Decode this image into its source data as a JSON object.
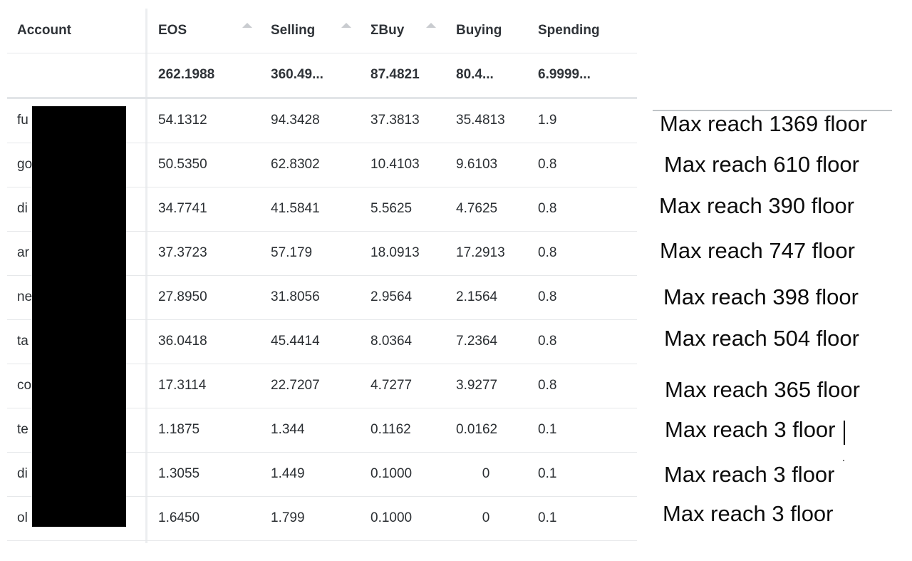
{
  "table": {
    "headers": [
      "Account",
      "EOS",
      "Selling",
      "ΣBuy",
      "Buying",
      "Spending"
    ],
    "totals": [
      "",
      "262.1988",
      "360.49...",
      "87.4821",
      "80.4...",
      "6.9999..."
    ],
    "rows": [
      {
        "account": "fu",
        "eos": "54.1312",
        "selling": "94.3428",
        "sbuy": "37.3813",
        "buying": "35.4813",
        "spending": "1.9"
      },
      {
        "account": "go",
        "eos": "50.5350",
        "selling": "62.8302",
        "sbuy": "10.4103",
        "buying": "9.6103",
        "spending": "0.8"
      },
      {
        "account": "di",
        "eos": "34.7741",
        "selling": "41.5841",
        "sbuy": "5.5625",
        "buying": "4.7625",
        "spending": "0.8"
      },
      {
        "account": "ar",
        "eos": "37.3723",
        "selling": "57.179",
        "sbuy": "18.0913",
        "buying": "17.2913",
        "spending": "0.8"
      },
      {
        "account": "ne",
        "eos": "27.8950",
        "selling": "31.8056",
        "sbuy": "2.9564",
        "buying": "2.1564",
        "spending": "0.8"
      },
      {
        "account": "ta",
        "eos": "36.0418",
        "selling": "45.4414",
        "sbuy": "8.0364",
        "buying": "7.2364",
        "spending": "0.8"
      },
      {
        "account": "co",
        "eos": "17.3114",
        "selling": "22.7207",
        "sbuy": "4.7277",
        "buying": "3.9277",
        "spending": "0.8"
      },
      {
        "account": "te",
        "eos": "1.1875",
        "selling": "1.344",
        "sbuy": "0.1162",
        "buying": "0.0162",
        "spending": "0.1"
      },
      {
        "account": "di",
        "eos": "1.3055",
        "selling": "1.449",
        "sbuy": "0.1000",
        "buying": "0",
        "spending": "0.1"
      },
      {
        "account": "ol",
        "eos": "1.6450",
        "selling": "1.799",
        "sbuy": "0.1000",
        "buying": "0",
        "spending": "0.1"
      }
    ]
  },
  "notes": [
    "Max reach 1369 floor",
    "Max reach 610 floor",
    "Max reach 390 floor",
    "Max reach 747 floor",
    "Max reach 398 floor",
    "Max reach 504 floor",
    "Max reach 365 floor",
    "Max reach 3 floor",
    "Max reach 3 floor",
    "Max reach 3 floor"
  ],
  "icons": {
    "sort": "sort-up-icon"
  }
}
